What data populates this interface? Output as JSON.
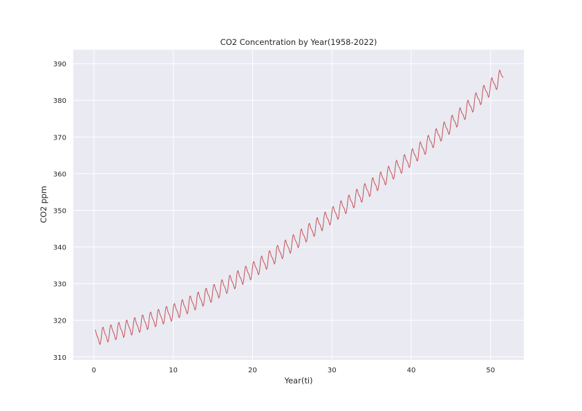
{
  "colors": {
    "plot_background": "#eaeaf2",
    "grid": "#ffffff",
    "series_line": "#c44e52",
    "text": "#262626"
  },
  "chart_data": {
    "type": "line",
    "title": "CO2 Concentration by Year(1958-2022)",
    "xlabel": "Year(ti)",
    "ylabel": "CO2 ppm",
    "xlim": [
      -2.6,
      54.2
    ],
    "ylim": [
      309.2,
      393.8
    ],
    "xticks": [
      0,
      10,
      20,
      30,
      40,
      50
    ],
    "xtick_labels": [
      "0",
      "10",
      "20",
      "30",
      "40",
      "50"
    ],
    "yticks": [
      310,
      320,
      330,
      340,
      350,
      360,
      370,
      380,
      390
    ],
    "ytick_labels": [
      "310",
      "320",
      "330",
      "340",
      "350",
      "360",
      "370",
      "380",
      "390"
    ],
    "grid": true,
    "legend": "none",
    "series": [
      {
        "trend": {
          "x": [
            0.17,
            5,
            10,
            15,
            20,
            25,
            30,
            35,
            40,
            45,
            50,
            51.6
          ],
          "y": [
            315.3,
            318.4,
            322.2,
            327.4,
            333.6,
            340.9,
            348.6,
            356.4,
            364.3,
            373.4,
            383.6,
            386.9
          ]
        },
        "seasonal_amplitude_ppm": 2.6,
        "sample_interval_years": 0.0833,
        "x_start": 0.17,
        "x_end": 51.6
      }
    ]
  }
}
